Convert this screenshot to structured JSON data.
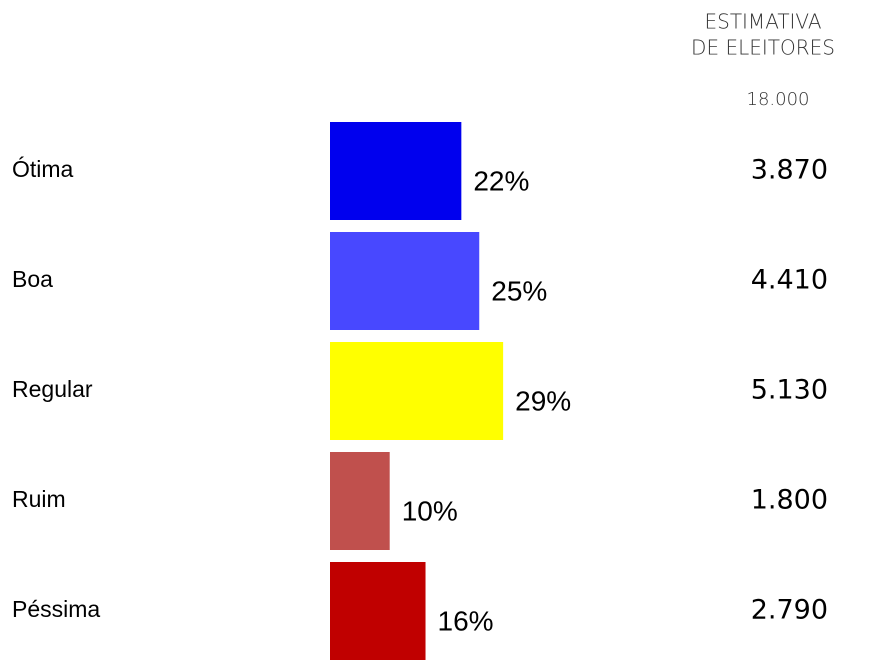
{
  "chart_data": {
    "type": "bar",
    "categories": [
      "Ótima",
      "Boa",
      "Regular",
      "Ruim",
      "Péssima"
    ],
    "values": [
      22,
      25,
      29,
      10,
      16
    ],
    "value_labels": [
      "22%",
      "25%",
      "29%",
      "10%",
      "16%"
    ],
    "colors": [
      "#0000ee",
      "#4848ff",
      "#ffff00",
      "#c0504d",
      "#c00000"
    ],
    "column_title": [
      "ESTIMATIVA",
      "DE ELEITORES"
    ],
    "column_total": {
      "value": 18000,
      "label": "18.000"
    },
    "column_values": [
      3870,
      4410,
      5130,
      1800,
      2790
    ],
    "column_value_labels": [
      "3.870",
      "4.410",
      "5.130",
      "1.800",
      "2.790"
    ]
  }
}
